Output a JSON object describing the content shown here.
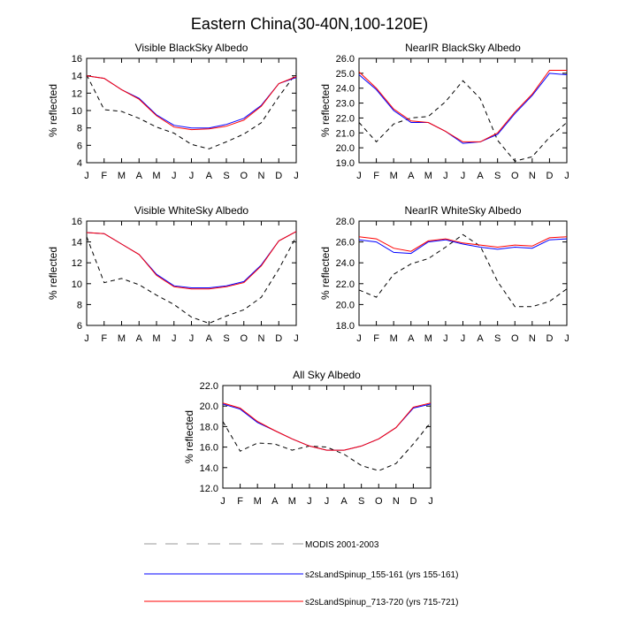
{
  "figure_title": "Eastern China(30-40N,100-120E)",
  "legend": [
    {
      "label": "MODIS 2001-2003",
      "color": "#000000",
      "dash": true
    },
    {
      "label": "s2sLandSpinup_155-161 (yrs 155-161)",
      "color": "#0000ff",
      "dash": false
    },
    {
      "label": "s2sLandSpinup_713-720 (yrs 715-721)",
      "color": "#ff0000",
      "dash": false
    }
  ],
  "chart_data": [
    {
      "type": "line",
      "title": "Visible BlackSky Albedo",
      "ylabel": "% reflected",
      "categories": [
        "J",
        "F",
        "M",
        "A",
        "M",
        "J",
        "J",
        "A",
        "S",
        "O",
        "N",
        "D",
        "J"
      ],
      "ylim": [
        4,
        16
      ],
      "yticks": [
        "4",
        "6",
        "8",
        "10",
        "12",
        "14",
        "16"
      ],
      "series": [
        {
          "name": "MODIS 2001-2003",
          "values": [
            14.1,
            10.1,
            9.9,
            9.1,
            8.1,
            7.4,
            6.1,
            5.6,
            6.4,
            7.3,
            8.6,
            11.6,
            14.3
          ]
        },
        {
          "name": "s2sLandSpinup_155-161",
          "values": [
            14.0,
            13.7,
            12.4,
            11.4,
            9.5,
            8.3,
            8.0,
            8.0,
            8.4,
            9.1,
            10.6,
            13.1,
            13.8
          ]
        },
        {
          "name": "s2sLandSpinup_713-720",
          "values": [
            14.0,
            13.7,
            12.4,
            11.3,
            9.4,
            8.1,
            7.8,
            7.9,
            8.2,
            8.9,
            10.5,
            13.1,
            13.9
          ]
        }
      ]
    },
    {
      "type": "line",
      "title": "NearIR BlackSky Albedo",
      "ylabel": "% reflected",
      "categories": [
        "J",
        "F",
        "M",
        "A",
        "M",
        "J",
        "J",
        "A",
        "S",
        "O",
        "N",
        "D",
        "J"
      ],
      "ylim": [
        19,
        26
      ],
      "yticks": [
        "19.0",
        "20.0",
        "21.0",
        "22.0",
        "23.0",
        "24.0",
        "25.0",
        "26.0"
      ],
      "series": [
        {
          "name": "MODIS 2001-2003",
          "values": [
            21.7,
            20.4,
            21.6,
            22.0,
            22.1,
            23.1,
            24.5,
            23.3,
            20.5,
            19.1,
            19.4,
            20.7,
            21.7
          ]
        },
        {
          "name": "s2sLandSpinup_155-161",
          "values": [
            24.9,
            23.9,
            22.5,
            21.7,
            21.7,
            21.1,
            20.3,
            20.4,
            20.9,
            22.3,
            23.5,
            25.0,
            24.9
          ]
        },
        {
          "name": "s2sLandSpinup_713-720",
          "values": [
            25.1,
            24.0,
            22.6,
            21.8,
            21.7,
            21.1,
            20.4,
            20.4,
            21.0,
            22.4,
            23.6,
            25.2,
            25.2
          ]
        }
      ]
    },
    {
      "type": "line",
      "title": "Visible WhiteSky Albedo",
      "ylabel": "% reflected",
      "categories": [
        "J",
        "F",
        "M",
        "A",
        "M",
        "J",
        "J",
        "A",
        "S",
        "O",
        "N",
        "D",
        "J"
      ],
      "ylim": [
        6,
        16
      ],
      "yticks": [
        "6",
        "8",
        "10",
        "12",
        "14",
        "16"
      ],
      "series": [
        {
          "name": "MODIS 2001-2003",
          "values": [
            14.5,
            10.1,
            10.5,
            9.9,
            8.9,
            8.0,
            6.8,
            6.2,
            6.9,
            7.5,
            8.7,
            11.4,
            14.5
          ]
        },
        {
          "name": "s2sLandSpinup_155-161",
          "values": [
            14.9,
            14.8,
            13.8,
            12.8,
            10.9,
            9.8,
            9.6,
            9.6,
            9.8,
            10.2,
            11.8,
            14.1,
            15.0
          ]
        },
        {
          "name": "s2sLandSpinup_713-720",
          "values": [
            14.9,
            14.8,
            13.8,
            12.8,
            10.8,
            9.7,
            9.5,
            9.5,
            9.7,
            10.1,
            11.7,
            14.1,
            15.0
          ]
        }
      ]
    },
    {
      "type": "line",
      "title": "NearIR WhiteSky Albedo",
      "ylabel": "% reflected",
      "categories": [
        "J",
        "F",
        "M",
        "A",
        "M",
        "J",
        "J",
        "A",
        "S",
        "O",
        "N",
        "D",
        "J"
      ],
      "ylim": [
        18,
        28
      ],
      "yticks": [
        "18.0",
        "20.0",
        "22.0",
        "24.0",
        "26.0",
        "28.0"
      ],
      "series": [
        {
          "name": "MODIS 2001-2003",
          "values": [
            21.4,
            20.7,
            22.9,
            23.9,
            24.4,
            25.5,
            26.7,
            25.6,
            22.2,
            19.8,
            19.8,
            20.3,
            21.5
          ]
        },
        {
          "name": "s2sLandSpinup_155-161",
          "values": [
            26.2,
            26.0,
            25.0,
            24.9,
            26.0,
            26.2,
            25.8,
            25.5,
            25.3,
            25.5,
            25.4,
            26.2,
            26.3
          ]
        },
        {
          "name": "s2sLandSpinup_713-720",
          "values": [
            26.5,
            26.3,
            25.4,
            25.1,
            26.1,
            26.3,
            25.9,
            25.7,
            25.5,
            25.7,
            25.6,
            26.4,
            26.5
          ]
        }
      ]
    },
    {
      "type": "line",
      "title": "All Sky Albedo",
      "ylabel": "% reflected",
      "categories": [
        "J",
        "F",
        "M",
        "A",
        "M",
        "J",
        "J",
        "A",
        "S",
        "O",
        "N",
        "D",
        "J"
      ],
      "ylim": [
        12,
        22
      ],
      "yticks": [
        "12.0",
        "14.0",
        "16.0",
        "18.0",
        "20.0",
        "22.0"
      ],
      "series": [
        {
          "name": "MODIS 2001-2003",
          "values": [
            18.5,
            15.6,
            16.4,
            16.3,
            15.7,
            16.1,
            16.0,
            15.3,
            14.2,
            13.7,
            14.4,
            16.3,
            18.4
          ]
        },
        {
          "name": "s2sLandSpinup_155-161",
          "values": [
            20.2,
            19.7,
            18.4,
            17.6,
            16.8,
            16.1,
            15.7,
            15.7,
            16.1,
            16.8,
            17.9,
            19.8,
            20.2
          ]
        },
        {
          "name": "s2sLandSpinup_713-720",
          "values": [
            20.3,
            19.8,
            18.5,
            17.6,
            16.8,
            16.1,
            15.7,
            15.7,
            16.1,
            16.8,
            17.9,
            19.9,
            20.3
          ]
        }
      ]
    }
  ]
}
